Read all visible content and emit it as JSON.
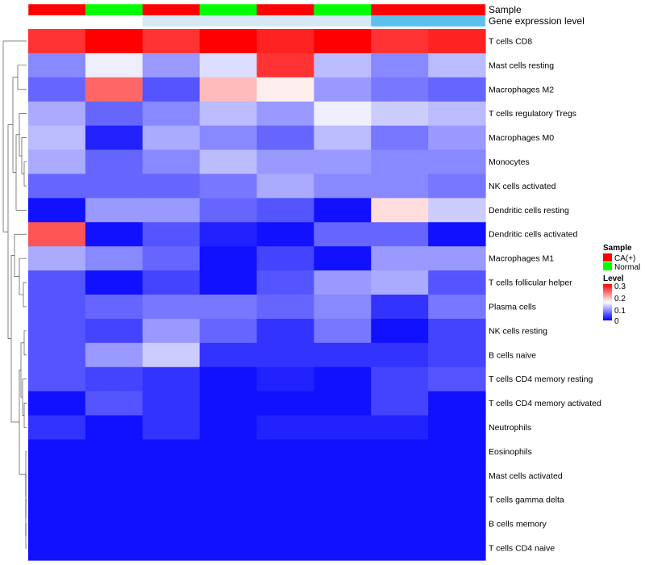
{
  "chart_data": {
    "type": "heatmap",
    "annotation_labels": [
      "Sample",
      "Gene expression level"
    ],
    "sample_groups": [
      "CA(+)",
      "Normal",
      "CA(+)",
      "Normal",
      "CA(+)",
      "Normal",
      "CA(+)",
      "CA(+)"
    ],
    "expression_levels": [
      "low",
      "low",
      "mid",
      "mid",
      "mid",
      "mid",
      "high",
      "high"
    ],
    "rows": [
      "T cells CD8",
      "Mast cells resting",
      "Macrophages M2",
      "T cells regulatory  Tregs",
      "Macrophages M0",
      "Monocytes",
      "NK cells activated",
      "Dendritic cells resting",
      "Dendritic cells activated",
      "Macrophages M1",
      "T cells follicular helper",
      "Plasma cells",
      "NK cells resting",
      "B cells naive",
      "T cells CD4 memory resting",
      "T cells CD4 memory activated",
      "Neutrophils",
      "Eosinophils",
      "Mast cells activated",
      "T cells gamma delta",
      "B cells memory",
      "T cells CD4 naive"
    ],
    "values": [
      [
        0.27,
        0.3,
        0.27,
        0.3,
        0.28,
        0.3,
        0.27,
        0.28
      ],
      [
        0.08,
        0.14,
        0.09,
        0.13,
        0.27,
        0.11,
        0.08,
        0.11
      ],
      [
        0.06,
        0.24,
        0.05,
        0.19,
        0.16,
        0.09,
        0.07,
        0.06
      ],
      [
        0.1,
        0.06,
        0.08,
        0.11,
        0.09,
        0.14,
        0.12,
        0.11
      ],
      [
        0.11,
        0.02,
        0.1,
        0.08,
        0.06,
        0.11,
        0.07,
        0.09
      ],
      [
        0.1,
        0.06,
        0.08,
        0.11,
        0.09,
        0.09,
        0.08,
        0.08
      ],
      [
        0.06,
        0.06,
        0.06,
        0.07,
        0.1,
        0.08,
        0.08,
        0.07
      ],
      [
        0.01,
        0.09,
        0.09,
        0.06,
        0.05,
        0.01,
        0.17,
        0.12
      ],
      [
        0.25,
        0.01,
        0.05,
        0.02,
        0.01,
        0.06,
        0.06,
        0.01
      ],
      [
        0.1,
        0.08,
        0.06,
        0.01,
        0.04,
        0.01,
        0.09,
        0.09
      ],
      [
        0.05,
        0.01,
        0.04,
        0.01,
        0.05,
        0.09,
        0.1,
        0.05
      ],
      [
        0.05,
        0.06,
        0.07,
        0.07,
        0.06,
        0.08,
        0.03,
        0.07
      ],
      [
        0.05,
        0.04,
        0.09,
        0.06,
        0.03,
        0.07,
        0.01,
        0.04
      ],
      [
        0.05,
        0.09,
        0.12,
        0.03,
        0.03,
        0.03,
        0.03,
        0.04
      ],
      [
        0.05,
        0.04,
        0.03,
        0.01,
        0.02,
        0.01,
        0.04,
        0.05
      ],
      [
        0.01,
        0.05,
        0.03,
        0.01,
        0.01,
        0.01,
        0.04,
        0.01
      ],
      [
        0.03,
        0.01,
        0.03,
        0.01,
        0.02,
        0.02,
        0.02,
        0.01
      ],
      [
        0.01,
        0.01,
        0.01,
        0.01,
        0.01,
        0.01,
        0.01,
        0.01
      ],
      [
        0.01,
        0.01,
        0.01,
        0.01,
        0.01,
        0.01,
        0.01,
        0.01
      ],
      [
        0.01,
        0.01,
        0.01,
        0.01,
        0.01,
        0.01,
        0.01,
        0.01
      ],
      [
        0.01,
        0.01,
        0.01,
        0.01,
        0.01,
        0.01,
        0.01,
        0.01
      ],
      [
        0.01,
        0.01,
        0.01,
        0.01,
        0.01,
        0.01,
        0.01,
        0.01
      ]
    ],
    "color_scale": {
      "low": "#0000ff",
      "mid": "#ffffff",
      "high": "#ff0000",
      "min": 0,
      "max": 0.3
    },
    "legend": {
      "sample_title": "Sample",
      "sample_entries": [
        {
          "label": "CA(+)",
          "color": "#ff0000"
        },
        {
          "label": "Normal",
          "color": "#00ff00"
        }
      ],
      "level_title": "Level",
      "level_ticks": [
        "0.3",
        "0.2",
        "0.1",
        "0"
      ]
    },
    "sample_colors": {
      "CA(+)": "#ff0000",
      "Normal": "#00ff00"
    },
    "expression_colors": {
      "low": "#ffffff",
      "mid": "#d6e8f5",
      "high": "#5bc0eb"
    },
    "row_dendrogram": true
  }
}
